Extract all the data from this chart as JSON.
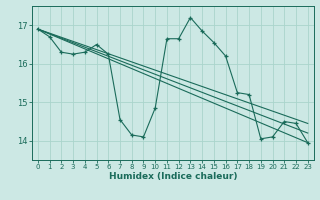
{
  "xlabel": "Humidex (Indice chaleur)",
  "ylabel": "",
  "bg_color": "#cce8e4",
  "line_color": "#1a6b5a",
  "grid_color": "#aad4cc",
  "xlim": [
    -0.5,
    23.5
  ],
  "ylim": [
    13.5,
    17.5
  ],
  "xticks": [
    0,
    1,
    2,
    3,
    4,
    5,
    6,
    7,
    8,
    9,
    10,
    11,
    12,
    13,
    14,
    15,
    16,
    17,
    18,
    19,
    20,
    21,
    22,
    23
  ],
  "yticks": [
    14,
    15,
    16,
    17
  ],
  "line1_x": [
    0,
    1,
    2,
    3,
    4,
    5,
    6,
    7,
    8,
    9,
    10,
    11,
    12,
    13,
    14,
    15,
    16,
    17,
    18,
    19,
    20,
    21,
    22,
    23
  ],
  "line1_y": [
    16.9,
    16.7,
    16.3,
    16.25,
    16.3,
    16.5,
    16.25,
    14.55,
    14.15,
    14.1,
    14.85,
    16.65,
    16.65,
    17.2,
    16.85,
    16.55,
    16.2,
    15.25,
    15.2,
    14.05,
    14.1,
    14.5,
    14.45,
    13.95
  ],
  "line2_x": [
    0,
    23
  ],
  "line2_y": [
    16.9,
    14.45
  ],
  "line3_x": [
    0,
    23
  ],
  "line3_y": [
    16.9,
    14.2
  ],
  "line4_x": [
    0,
    23
  ],
  "line4_y": [
    16.9,
    13.95
  ]
}
